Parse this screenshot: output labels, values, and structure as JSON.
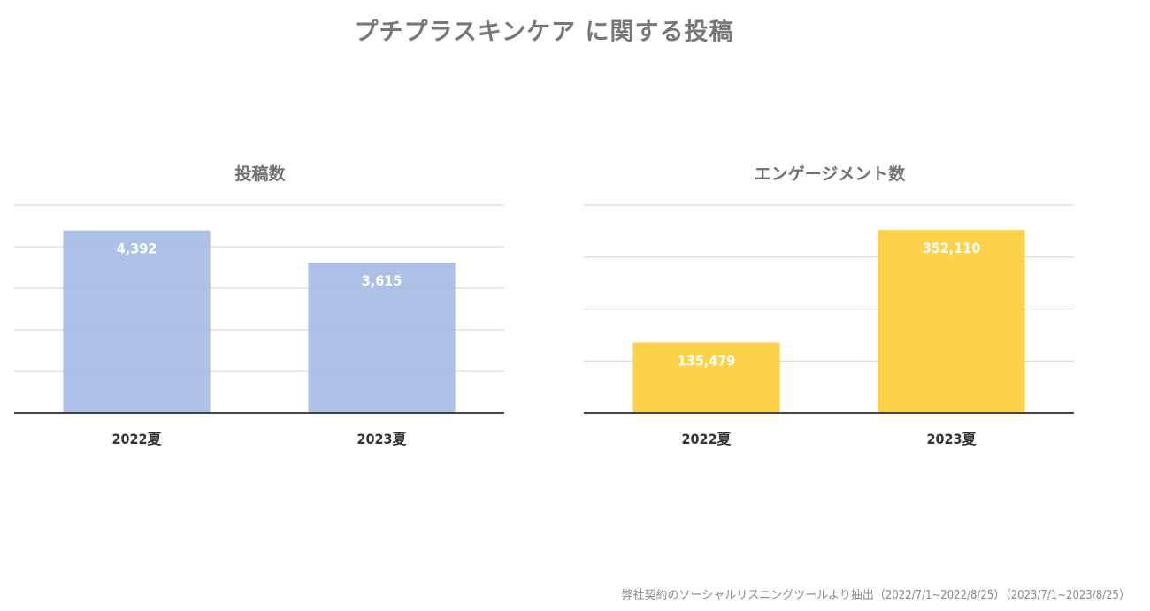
{
  "title": "プチプラスキンケア に関する投稿",
  "footnote": "弊社契約のソーシャルリスニングツールより抽出（2022/7/1~2022/8/25）（2023/7/1~2023/8/25）",
  "colors": {
    "posts_bar": "#a9bee6",
    "engagement_bar": "#fdd03f",
    "grid": "#d9d9d9",
    "axis": "#444444",
    "label": "#333333",
    "title": "#707070"
  },
  "chart_data": [
    {
      "type": "bar",
      "title": "投稿数",
      "categories": [
        "2022夏",
        "2023夏"
      ],
      "values": [
        4392,
        3615
      ],
      "data_labels": [
        "4,392",
        "3,615"
      ],
      "ylim": [
        0,
        5000
      ],
      "ytick_step": 1000,
      "grid": true,
      "color": "#a9bee6"
    },
    {
      "type": "bar",
      "title": "エンゲージメント数",
      "categories": [
        "2022夏",
        "2023夏"
      ],
      "values": [
        135479,
        352110
      ],
      "data_labels": [
        "135,479",
        "352,110"
      ],
      "ylim": [
        0,
        400000
      ],
      "ytick_step": 100000,
      "grid": true,
      "color": "#fdd03f"
    }
  ]
}
